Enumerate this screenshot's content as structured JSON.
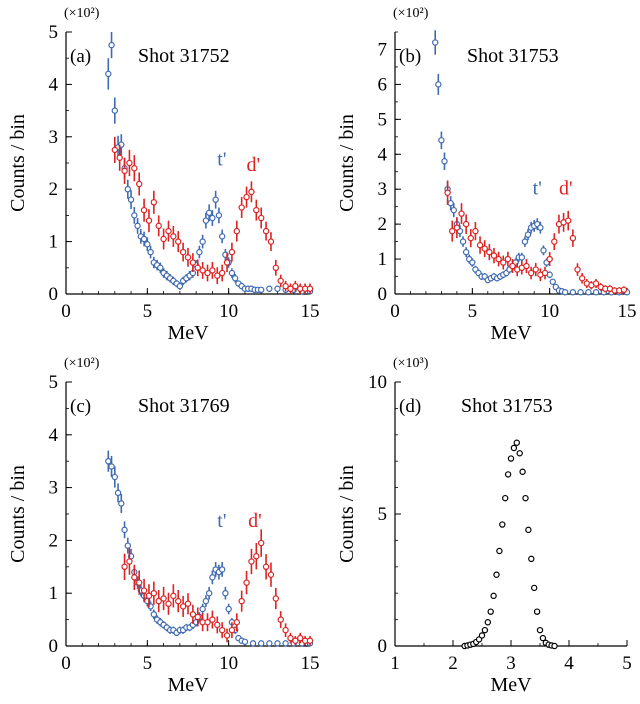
{
  "colors": {
    "blue": "#3f6ab0",
    "red": "#dd2222",
    "black": "#000000"
  },
  "chart_data": [
    {
      "panel": "(a)",
      "type": "scatter",
      "title": "Shot 31752",
      "xlabel": "MeV",
      "ylabel": "Counts / bin",
      "multiplier": "(×10²)",
      "xlim": [
        0,
        15
      ],
      "ylim": [
        0,
        5
      ],
      "xticks": [
        "0",
        "5",
        "10",
        "15"
      ],
      "yticks": [
        "0",
        "1",
        "2",
        "3",
        "4",
        "5"
      ],
      "annotations": [
        {
          "text": "t'",
          "color": "blue",
          "x": 9.3,
          "y": 2.45
        },
        {
          "text": "d'",
          "color": "red",
          "x": 11.1,
          "y": 2.35
        }
      ],
      "series": [
        {
          "color": "blue",
          "x": [
            2.6,
            2.8,
            3.0,
            3.2,
            3.4,
            3.6,
            3.8,
            4.0,
            4.2,
            4.4,
            4.6,
            4.8,
            5.0,
            5.2,
            5.4,
            5.6,
            5.8,
            6.0,
            6.2,
            6.4,
            6.6,
            6.8,
            7.0,
            7.2,
            7.4,
            7.6,
            7.8,
            8.0,
            8.2,
            8.4,
            8.6,
            8.8,
            9.0,
            9.2,
            9.4,
            9.6,
            9.8,
            10.0,
            10.2,
            10.4,
            10.6,
            10.8,
            11.0,
            11.2,
            11.4,
            11.6,
            11.8,
            12.0,
            12.5,
            13.0,
            13.5,
            14.0,
            14.5,
            15.0
          ],
          "y": [
            4.2,
            4.75,
            3.5,
            2.8,
            2.85,
            2.4,
            2.0,
            1.8,
            1.5,
            1.3,
            1.1,
            1.05,
            0.95,
            0.8,
            0.6,
            0.55,
            0.5,
            0.4,
            0.35,
            0.3,
            0.25,
            0.2,
            0.15,
            0.25,
            0.3,
            0.35,
            0.4,
            0.55,
            0.8,
            1.0,
            1.4,
            1.55,
            1.45,
            1.8,
            1.5,
            1.1,
            0.75,
            0.6,
            0.4,
            0.3,
            0.2,
            0.15,
            0.1,
            0.1,
            0.1,
            0.08,
            0.08,
            0.08,
            0.1,
            0.1,
            0.08,
            0.08,
            0.05,
            0.05
          ],
          "err": [
            0.3,
            0.25,
            0.25,
            0.22,
            0.2,
            0.2,
            0.18,
            0.18,
            0.16,
            0.15,
            0.14,
            0.14,
            0.13,
            0.12,
            0.11,
            0.1,
            0.1,
            0.09,
            0.09,
            0.08,
            0.08,
            0.07,
            0.07,
            0.08,
            0.08,
            0.09,
            0.09,
            0.1,
            0.12,
            0.13,
            0.15,
            0.16,
            0.15,
            0.17,
            0.15,
            0.13,
            0.11,
            0.1,
            0.09,
            0.08,
            0.06,
            0.06,
            0.05,
            0.05,
            0.05,
            0.05,
            0.05,
            0.05,
            0.05,
            0.05,
            0.05,
            0.05,
            0.04,
            0.04
          ]
        },
        {
          "color": "red",
          "x": [
            3.0,
            3.3,
            3.6,
            3.9,
            4.2,
            4.5,
            4.8,
            5.1,
            5.4,
            5.7,
            6.0,
            6.3,
            6.6,
            6.9,
            7.2,
            7.5,
            7.8,
            8.1,
            8.4,
            8.7,
            9.0,
            9.3,
            9.6,
            9.9,
            10.2,
            10.5,
            10.8,
            11.1,
            11.4,
            11.7,
            12.0,
            12.3,
            12.6,
            12.9,
            13.2,
            13.5,
            13.8,
            14.1,
            14.4,
            14.7,
            15.0
          ],
          "y": [
            2.75,
            2.6,
            2.35,
            2.5,
            2.4,
            2.1,
            1.6,
            1.4,
            1.75,
            1.3,
            1.05,
            1.2,
            1.1,
            1.0,
            0.8,
            0.7,
            0.6,
            0.5,
            0.45,
            0.4,
            0.45,
            0.35,
            0.4,
            0.6,
            0.8,
            1.2,
            1.65,
            1.85,
            1.95,
            1.6,
            1.45,
            1.2,
            1.0,
            0.5,
            0.25,
            0.15,
            0.1,
            0.15,
            0.1,
            0.1,
            0.1
          ],
          "err": [
            0.25,
            0.25,
            0.25,
            0.25,
            0.25,
            0.22,
            0.22,
            0.22,
            0.22,
            0.2,
            0.2,
            0.2,
            0.2,
            0.2,
            0.18,
            0.18,
            0.18,
            0.16,
            0.16,
            0.16,
            0.16,
            0.16,
            0.16,
            0.18,
            0.18,
            0.2,
            0.2,
            0.2,
            0.2,
            0.2,
            0.2,
            0.18,
            0.18,
            0.15,
            0.12,
            0.1,
            0.1,
            0.1,
            0.1,
            0.1,
            0.1
          ]
        }
      ]
    },
    {
      "panel": "(b)",
      "type": "scatter",
      "title": "Shot 31753",
      "xlabel": "MeV",
      "ylabel": "Counts / bin",
      "multiplier": "(×10²)",
      "xlim": [
        0,
        15
      ],
      "ylim": [
        0,
        7.5
      ],
      "xticks": [
        "0",
        "5",
        "10",
        "15"
      ],
      "yticks": [
        "0",
        "1",
        "2",
        "3",
        "4",
        "5",
        "6",
        "7"
      ],
      "annotations": [
        {
          "text": "t'",
          "color": "blue",
          "x": 8.9,
          "y": 2.85
        },
        {
          "text": "d'",
          "color": "red",
          "x": 10.6,
          "y": 2.85
        }
      ],
      "series": [
        {
          "color": "blue",
          "x": [
            2.6,
            2.8,
            3.0,
            3.2,
            3.4,
            3.6,
            3.8,
            4.0,
            4.2,
            4.4,
            4.6,
            4.8,
            5.0,
            5.2,
            5.4,
            5.6,
            5.8,
            6.0,
            6.2,
            6.4,
            6.6,
            6.8,
            7.0,
            7.2,
            7.4,
            7.6,
            7.8,
            8.0,
            8.2,
            8.4,
            8.6,
            8.8,
            9.0,
            9.2,
            9.4,
            9.6,
            9.8,
            10.0,
            10.2,
            10.4,
            10.6,
            10.8,
            11.0,
            11.5,
            12.0,
            12.5,
            13.0,
            13.5,
            14.0,
            14.5,
            15.0
          ],
          "y": [
            7.2,
            6.0,
            4.4,
            3.8,
            3.0,
            2.6,
            2.4,
            2.0,
            1.8,
            1.5,
            1.2,
            1.0,
            0.9,
            0.7,
            0.6,
            0.5,
            0.5,
            0.4,
            0.45,
            0.5,
            0.45,
            0.5,
            0.55,
            0.6,
            0.7,
            0.8,
            0.9,
            1.05,
            1.05,
            1.5,
            1.7,
            1.9,
            1.95,
            2.0,
            1.9,
            1.25,
            0.9,
            0.55,
            0.35,
            0.2,
            0.1,
            0.08,
            0.05,
            0.05,
            0.05,
            0.05,
            0.05,
            0.05,
            0.05,
            0.05,
            0.05
          ],
          "err": [
            0.35,
            0.3,
            0.25,
            0.25,
            0.22,
            0.2,
            0.2,
            0.18,
            0.17,
            0.15,
            0.14,
            0.13,
            0.12,
            0.11,
            0.1,
            0.1,
            0.1,
            0.09,
            0.09,
            0.1,
            0.09,
            0.1,
            0.1,
            0.1,
            0.11,
            0.12,
            0.12,
            0.13,
            0.13,
            0.15,
            0.16,
            0.17,
            0.17,
            0.17,
            0.17,
            0.14,
            0.12,
            0.1,
            0.08,
            0.06,
            0.05,
            0.04,
            0.04,
            0.04,
            0.04,
            0.04,
            0.04,
            0.04,
            0.04,
            0.04,
            0.04
          ]
        },
        {
          "color": "red",
          "x": [
            3.4,
            3.7,
            4.0,
            4.3,
            4.6,
            4.9,
            5.2,
            5.5,
            5.8,
            6.1,
            6.4,
            6.7,
            7.0,
            7.3,
            7.6,
            7.9,
            8.2,
            8.5,
            8.8,
            9.1,
            9.4,
            9.7,
            10.0,
            10.3,
            10.6,
            10.9,
            11.2,
            11.5,
            11.8,
            12.1,
            12.4,
            12.7,
            13.0,
            13.3,
            13.6,
            13.9,
            14.2,
            14.5,
            14.8
          ],
          "y": [
            2.9,
            1.8,
            1.9,
            2.3,
            2.0,
            1.6,
            1.8,
            1.4,
            1.3,
            1.2,
            1.1,
            1.0,
            0.9,
            1.0,
            0.8,
            0.7,
            0.75,
            0.8,
            0.6,
            0.7,
            0.55,
            0.6,
            1.0,
            1.5,
            2.0,
            2.05,
            2.1,
            1.6,
            0.7,
            0.45,
            0.3,
            0.25,
            0.3,
            0.2,
            0.15,
            0.15,
            0.1,
            0.1,
            0.12
          ],
          "err": [
            0.35,
            0.3,
            0.3,
            0.3,
            0.28,
            0.26,
            0.26,
            0.25,
            0.24,
            0.23,
            0.22,
            0.21,
            0.2,
            0.21,
            0.2,
            0.19,
            0.19,
            0.2,
            0.18,
            0.19,
            0.18,
            0.18,
            0.2,
            0.24,
            0.27,
            0.27,
            0.28,
            0.25,
            0.18,
            0.15,
            0.13,
            0.12,
            0.13,
            0.11,
            0.1,
            0.1,
            0.09,
            0.09,
            0.1
          ]
        }
      ]
    },
    {
      "panel": "(c)",
      "type": "scatter",
      "title": "Shot 31769",
      "xlabel": "MeV",
      "ylabel": "Counts / bin",
      "multiplier": "(×10²)",
      "xlim": [
        0,
        15
      ],
      "ylim": [
        0,
        5
      ],
      "xticks": [
        "0",
        "5",
        "10",
        "15"
      ],
      "yticks": [
        "0",
        "1",
        "2",
        "3",
        "4",
        "5"
      ],
      "annotations": [
        {
          "text": "t'",
          "color": "blue",
          "x": 9.3,
          "y": 2.25
        },
        {
          "text": "d'",
          "color": "red",
          "x": 11.2,
          "y": 2.25
        }
      ],
      "series": [
        {
          "color": "blue",
          "x": [
            2.6,
            2.8,
            3.0,
            3.2,
            3.4,
            3.6,
            3.8,
            4.0,
            4.2,
            4.4,
            4.6,
            4.8,
            5.0,
            5.2,
            5.4,
            5.6,
            5.8,
            6.0,
            6.2,
            6.4,
            6.6,
            6.8,
            7.0,
            7.2,
            7.4,
            7.6,
            7.8,
            8.0,
            8.2,
            8.4,
            8.6,
            8.8,
            9.0,
            9.2,
            9.4,
            9.6,
            9.8,
            10.0,
            10.2,
            10.4,
            10.6,
            10.8,
            11.0,
            11.5,
            12.0,
            12.5,
            13.0,
            13.5,
            14.0,
            14.5,
            15.0
          ],
          "y": [
            3.5,
            3.4,
            3.2,
            2.9,
            2.7,
            2.2,
            1.9,
            1.7,
            1.4,
            1.2,
            1.05,
            0.95,
            0.85,
            0.75,
            0.6,
            0.5,
            0.45,
            0.4,
            0.35,
            0.3,
            0.3,
            0.25,
            0.3,
            0.3,
            0.35,
            0.35,
            0.4,
            0.45,
            0.55,
            0.7,
            0.85,
            1.0,
            1.3,
            1.45,
            1.4,
            1.45,
            1.0,
            0.7,
            0.45,
            0.3,
            0.15,
            0.1,
            0.08,
            0.05,
            0.05,
            0.05,
            0.05,
            0.05,
            0.05,
            0.05,
            0.05
          ],
          "err": [
            0.2,
            0.2,
            0.2,
            0.18,
            0.18,
            0.16,
            0.15,
            0.14,
            0.13,
            0.12,
            0.11,
            0.1,
            0.1,
            0.09,
            0.09,
            0.08,
            0.08,
            0.07,
            0.07,
            0.07,
            0.07,
            0.06,
            0.07,
            0.07,
            0.07,
            0.07,
            0.08,
            0.08,
            0.09,
            0.1,
            0.11,
            0.12,
            0.13,
            0.14,
            0.14,
            0.14,
            0.12,
            0.1,
            0.08,
            0.07,
            0.05,
            0.04,
            0.04,
            0.04,
            0.04,
            0.04,
            0.04,
            0.04,
            0.04,
            0.04,
            0.04
          ]
        },
        {
          "color": "red",
          "x": [
            3.6,
            3.9,
            4.2,
            4.5,
            4.8,
            5.1,
            5.4,
            5.7,
            6.0,
            6.3,
            6.6,
            6.9,
            7.2,
            7.5,
            7.8,
            8.1,
            8.4,
            8.7,
            9.0,
            9.3,
            9.6,
            9.9,
            10.2,
            10.5,
            10.8,
            11.1,
            11.4,
            11.7,
            12.0,
            12.3,
            12.6,
            12.9,
            13.2,
            13.5,
            13.8,
            14.1,
            14.4,
            14.7,
            15.0
          ],
          "y": [
            1.5,
            1.6,
            1.3,
            1.2,
            1.05,
            0.95,
            1.0,
            0.85,
            0.9,
            0.8,
            0.95,
            0.85,
            0.75,
            0.8,
            0.6,
            0.55,
            0.45,
            0.45,
            0.5,
            0.4,
            0.3,
            0.2,
            0.3,
            0.45,
            0.85,
            1.2,
            1.6,
            1.7,
            1.95,
            1.5,
            1.35,
            0.9,
            0.5,
            0.3,
            0.15,
            0.1,
            0.15,
            0.1,
            0.1
          ],
          "err": [
            0.25,
            0.25,
            0.24,
            0.23,
            0.22,
            0.22,
            0.22,
            0.21,
            0.22,
            0.21,
            0.22,
            0.21,
            0.2,
            0.2,
            0.18,
            0.18,
            0.17,
            0.17,
            0.17,
            0.16,
            0.15,
            0.13,
            0.15,
            0.17,
            0.2,
            0.22,
            0.24,
            0.25,
            0.26,
            0.24,
            0.23,
            0.2,
            0.16,
            0.13,
            0.1,
            0.09,
            0.1,
            0.09,
            0.09
          ]
        }
      ]
    },
    {
      "panel": "(d)",
      "type": "scatter",
      "title": "Shot 31753",
      "xlabel": "MeV",
      "ylabel": "Counts / bin",
      "multiplier": "(×10³)",
      "xlim": [
        1,
        5
      ],
      "ylim": [
        0,
        10
      ],
      "xticks": [
        "1",
        "2",
        "3",
        "4",
        "5"
      ],
      "yticks": [
        "0",
        "5",
        "10"
      ],
      "annotations": [],
      "series": [
        {
          "color": "black",
          "x": [
            2.2,
            2.25,
            2.3,
            2.35,
            2.4,
            2.45,
            2.5,
            2.55,
            2.6,
            2.65,
            2.7,
            2.75,
            2.8,
            2.85,
            2.9,
            2.95,
            3.0,
            3.05,
            3.1,
            3.15,
            3.2,
            3.25,
            3.3,
            3.35,
            3.4,
            3.45,
            3.5,
            3.55,
            3.6,
            3.65,
            3.7,
            3.75
          ],
          "y": [
            0.0,
            0.02,
            0.05,
            0.08,
            0.15,
            0.25,
            0.4,
            0.6,
            0.9,
            1.3,
            1.9,
            2.7,
            3.6,
            4.6,
            5.6,
            6.5,
            7.1,
            7.5,
            7.7,
            7.3,
            6.6,
            5.6,
            4.4,
            3.3,
            2.2,
            1.3,
            0.6,
            0.3,
            0.12,
            0.05,
            0.02,
            0.0
          ],
          "err": []
        }
      ]
    }
  ]
}
